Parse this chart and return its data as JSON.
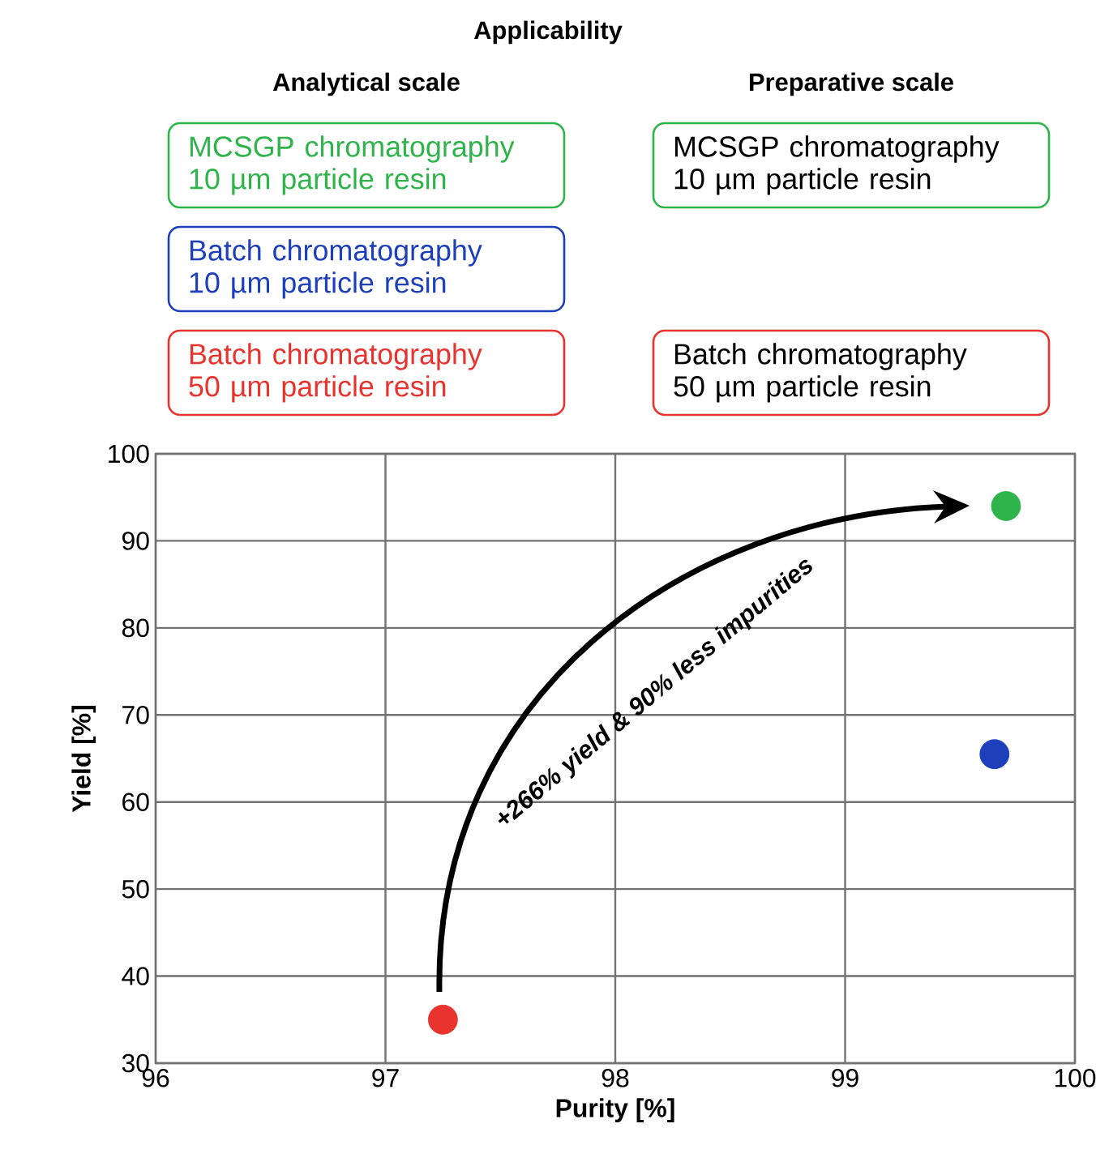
{
  "chart_data": {
    "type": "scatter",
    "legend_title": "Applicability",
    "xlabel": "Purity [%]",
    "ylabel": "Yield [%]",
    "xlim": [
      96,
      100
    ],
    "xticks": [
      96,
      97,
      98,
      99,
      100
    ],
    "ylim": [
      30,
      100
    ],
    "yticks": [
      30,
      40,
      50,
      60,
      70,
      80,
      90,
      100
    ],
    "grid": true,
    "legend": "top",
    "marker": "circle",
    "series": [
      {
        "name": "MCSGP chromatography 10 µm particle resin",
        "color": "#2fb34b",
        "x": [
          99.7
        ],
        "values": [
          94
        ]
      },
      {
        "name": "Batch chromatography 10 µm particle resin",
        "color": "#1d3fbb",
        "x": [
          99.65
        ],
        "values": [
          65.5
        ]
      },
      {
        "name": "Batch chromatography 50 µm particle resin",
        "color": "#e8332e",
        "x": [
          97.25
        ],
        "values": [
          35
        ]
      }
    ],
    "annotations": [
      "Analytical scale",
      "Preparative scale",
      "MCSGP chromatography 10 µm particle resin",
      "Batch chromatography 50 µm particle resin",
      "+266% yield & 90% less impurities"
    ]
  }
}
